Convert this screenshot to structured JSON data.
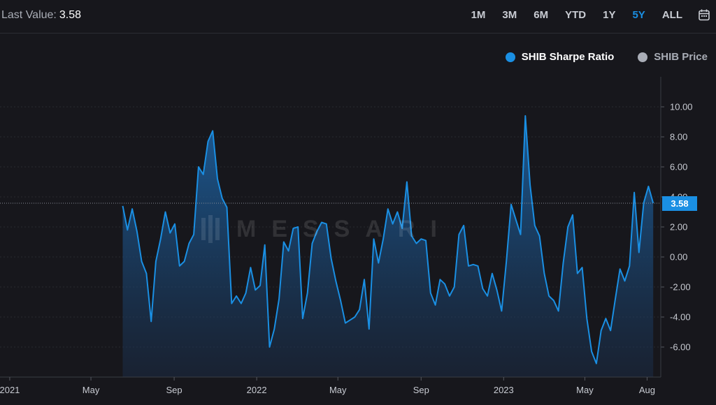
{
  "header": {
    "last_value_label": "Last Value:",
    "last_value": "3.58",
    "ranges": [
      "1M",
      "3M",
      "6M",
      "YTD",
      "1Y",
      "5Y",
      "ALL"
    ],
    "active_range": "5Y",
    "calendar_icon": "calendar-icon"
  },
  "legend": {
    "series_1": "SHIB Sharpe Ratio",
    "series_1_color": "#1a8fe3",
    "series_2": "SHIB Price",
    "series_2_color": "#a9adb6"
  },
  "watermark": {
    "text": "MESSARI"
  },
  "badge": {
    "value": "3.58"
  },
  "chart_data": {
    "type": "area",
    "title": "",
    "xlabel": "",
    "ylabel": "",
    "ylim": [
      -8,
      12
    ],
    "y_ticks": [
      "10.00",
      "8.00",
      "6.00",
      "4.00",
      "2.00",
      "0.00",
      "-2.00",
      "-4.00",
      "-6.00"
    ],
    "y_tick_values": [
      10,
      8,
      6,
      4,
      2,
      0,
      -2,
      -4,
      -6
    ],
    "x_range": [
      "2020-12-30",
      "2023-08-15"
    ],
    "x_ticks": [
      {
        "label": "2021",
        "date": "2021-01-01"
      },
      {
        "label": "May",
        "date": "2021-05-01"
      },
      {
        "label": "Sep",
        "date": "2021-09-01"
      },
      {
        "label": "2022",
        "date": "2022-01-01"
      },
      {
        "label": "May",
        "date": "2022-05-01"
      },
      {
        "label": "Sep",
        "date": "2022-09-01"
      },
      {
        "label": "2023",
        "date": "2023-01-01"
      },
      {
        "label": "May",
        "date": "2023-05-01"
      },
      {
        "label": "Aug",
        "date": "2023-08-01"
      }
    ],
    "grid": true,
    "last_value_line": 3.58,
    "series": [
      {
        "name": "SHIB Sharpe Ratio",
        "color": "#1a8fe3",
        "points": [
          [
            "2021-06-17",
            3.4
          ],
          [
            "2021-06-24",
            1.8
          ],
          [
            "2021-07-01",
            3.2
          ],
          [
            "2021-07-08",
            1.7
          ],
          [
            "2021-07-15",
            -0.3
          ],
          [
            "2021-07-22",
            -1.1
          ],
          [
            "2021-07-29",
            -4.3
          ],
          [
            "2021-08-05",
            -0.3
          ],
          [
            "2021-08-12",
            1.2
          ],
          [
            "2021-08-19",
            3.0
          ],
          [
            "2021-08-26",
            1.6
          ],
          [
            "2021-09-02",
            2.2
          ],
          [
            "2021-09-09",
            -0.6
          ],
          [
            "2021-09-16",
            -0.3
          ],
          [
            "2021-09-23",
            0.9
          ],
          [
            "2021-09-30",
            1.5
          ],
          [
            "2021-10-07",
            6.0
          ],
          [
            "2021-10-14",
            5.5
          ],
          [
            "2021-10-21",
            7.7
          ],
          [
            "2021-10-28",
            8.4
          ],
          [
            "2021-11-04",
            5.2
          ],
          [
            "2021-11-11",
            3.9
          ],
          [
            "2021-11-18",
            3.3
          ],
          [
            "2021-11-25",
            -3.1
          ],
          [
            "2021-12-02",
            -2.6
          ],
          [
            "2021-12-09",
            -3.1
          ],
          [
            "2021-12-16",
            -2.4
          ],
          [
            "2021-12-23",
            -0.7
          ],
          [
            "2021-12-30",
            -2.2
          ],
          [
            "2022-01-06",
            -1.9
          ],
          [
            "2022-01-13",
            0.8
          ],
          [
            "2022-01-20",
            -6.0
          ],
          [
            "2022-01-27",
            -4.8
          ],
          [
            "2022-02-03",
            -2.8
          ],
          [
            "2022-02-10",
            1.0
          ],
          [
            "2022-02-17",
            0.4
          ],
          [
            "2022-02-24",
            1.9
          ],
          [
            "2022-03-03",
            2.0
          ],
          [
            "2022-03-10",
            -4.1
          ],
          [
            "2022-03-17",
            -2.4
          ],
          [
            "2022-03-24",
            0.9
          ],
          [
            "2022-03-31",
            1.7
          ],
          [
            "2022-04-07",
            2.3
          ],
          [
            "2022-04-14",
            2.2
          ],
          [
            "2022-04-21",
            -0.1
          ],
          [
            "2022-04-28",
            -1.6
          ],
          [
            "2022-05-05",
            -2.9
          ],
          [
            "2022-05-12",
            -4.4
          ],
          [
            "2022-05-19",
            -4.2
          ],
          [
            "2022-05-26",
            -4.0
          ],
          [
            "2022-06-02",
            -3.5
          ],
          [
            "2022-06-09",
            -1.5
          ],
          [
            "2022-06-16",
            -4.8
          ],
          [
            "2022-06-23",
            1.2
          ],
          [
            "2022-06-30",
            -0.4
          ],
          [
            "2022-07-07",
            1.2
          ],
          [
            "2022-07-14",
            3.2
          ],
          [
            "2022-07-21",
            2.2
          ],
          [
            "2022-07-28",
            3.0
          ],
          [
            "2022-08-04",
            1.9
          ],
          [
            "2022-08-11",
            5.0
          ],
          [
            "2022-08-18",
            1.4
          ],
          [
            "2022-08-25",
            0.9
          ],
          [
            "2022-09-01",
            1.2
          ],
          [
            "2022-09-08",
            1.1
          ],
          [
            "2022-09-15",
            -2.4
          ],
          [
            "2022-09-22",
            -3.2
          ],
          [
            "2022-09-29",
            -1.5
          ],
          [
            "2022-10-06",
            -1.8
          ],
          [
            "2022-10-13",
            -2.6
          ],
          [
            "2022-10-20",
            -2.0
          ],
          [
            "2022-10-27",
            1.5
          ],
          [
            "2022-11-03",
            2.1
          ],
          [
            "2022-11-10",
            -0.6
          ],
          [
            "2022-11-17",
            -0.5
          ],
          [
            "2022-11-24",
            -0.6
          ],
          [
            "2022-12-01",
            -2.1
          ],
          [
            "2022-12-08",
            -2.6
          ],
          [
            "2022-12-15",
            -1.1
          ],
          [
            "2022-12-22",
            -2.2
          ],
          [
            "2022-12-29",
            -3.6
          ],
          [
            "2023-01-05",
            -0.3
          ],
          [
            "2023-01-12",
            3.5
          ],
          [
            "2023-01-19",
            2.5
          ],
          [
            "2023-01-26",
            1.5
          ],
          [
            "2023-02-02",
            9.4
          ],
          [
            "2023-02-09",
            4.8
          ],
          [
            "2023-02-16",
            2.1
          ],
          [
            "2023-02-23",
            1.4
          ],
          [
            "2023-03-02",
            -1.1
          ],
          [
            "2023-03-09",
            -2.6
          ],
          [
            "2023-03-16",
            -2.9
          ],
          [
            "2023-03-23",
            -3.6
          ],
          [
            "2023-03-30",
            -0.4
          ],
          [
            "2023-04-06",
            2.0
          ],
          [
            "2023-04-13",
            2.8
          ],
          [
            "2023-04-20",
            -1.1
          ],
          [
            "2023-04-27",
            -0.7
          ],
          [
            "2023-05-04",
            -4.1
          ],
          [
            "2023-05-11",
            -6.3
          ],
          [
            "2023-05-18",
            -7.1
          ],
          [
            "2023-05-25",
            -4.9
          ],
          [
            "2023-06-01",
            -4.1
          ],
          [
            "2023-06-08",
            -4.9
          ],
          [
            "2023-06-15",
            -2.8
          ],
          [
            "2023-06-22",
            -0.8
          ],
          [
            "2023-06-29",
            -1.6
          ],
          [
            "2023-07-06",
            -0.6
          ],
          [
            "2023-07-13",
            4.3
          ],
          [
            "2023-07-20",
            0.3
          ],
          [
            "2023-07-27",
            3.6
          ],
          [
            "2023-08-03",
            4.7
          ],
          [
            "2023-08-10",
            3.58
          ]
        ]
      }
    ]
  }
}
